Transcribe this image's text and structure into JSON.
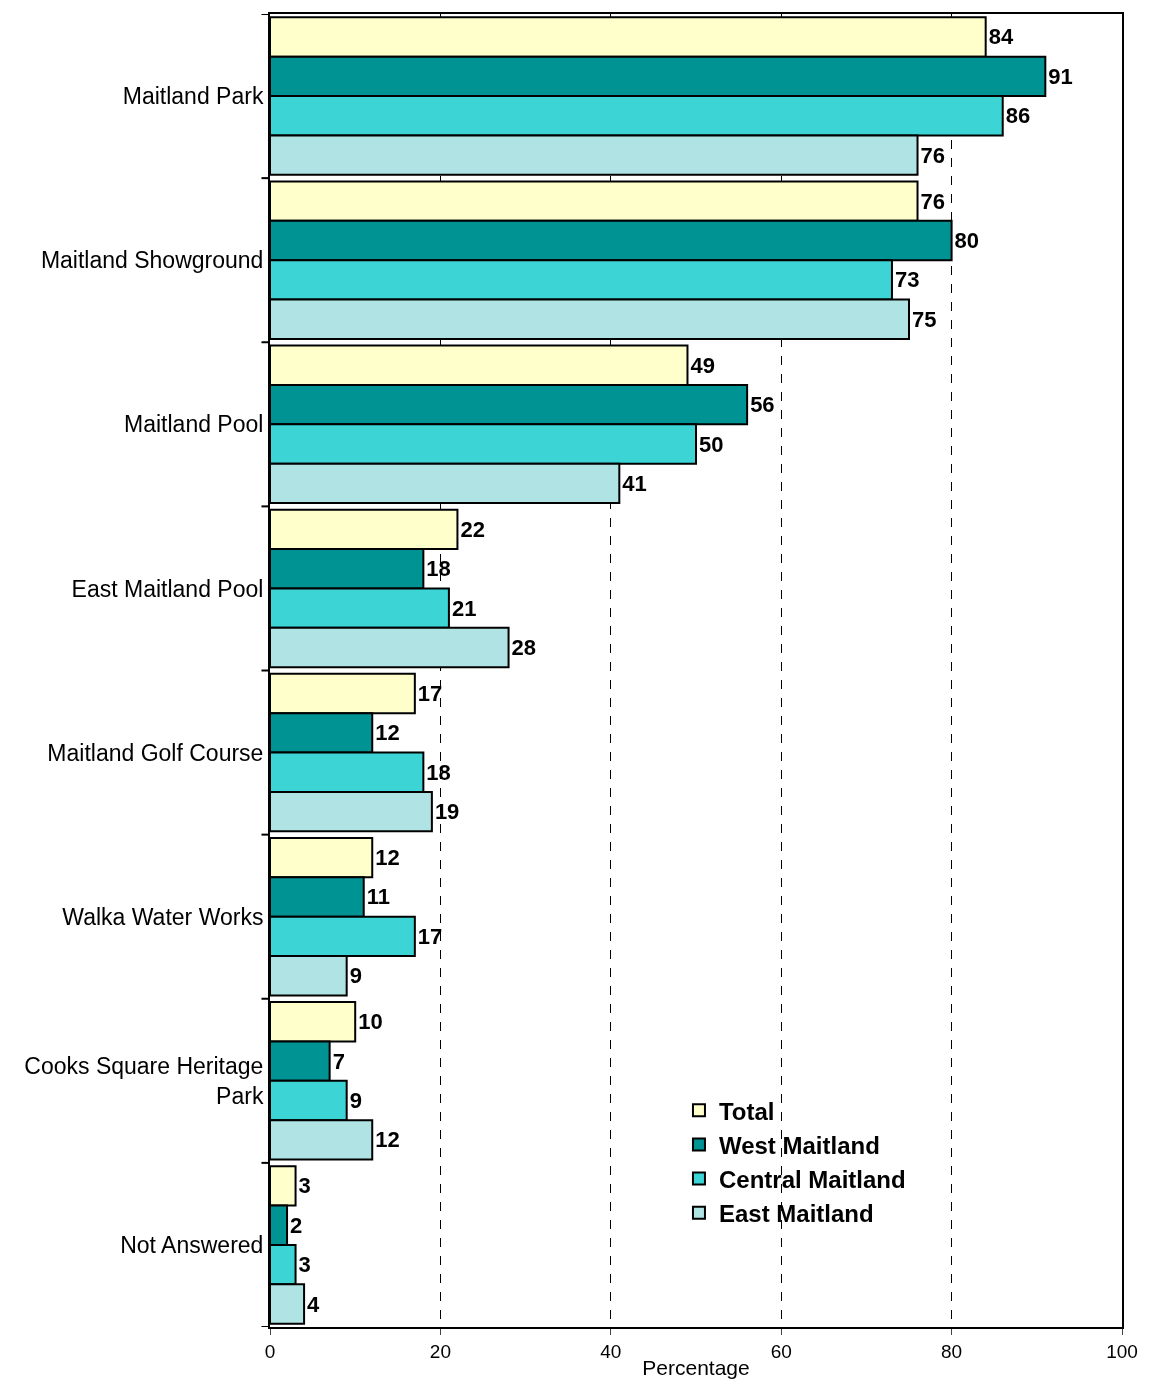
{
  "chart_data": {
    "type": "bar",
    "orientation": "horizontal",
    "xlabel": "Percentage",
    "categories": [
      "Maitland Park",
      "Maitland Showground",
      "Maitland Pool",
      "East Maitland Pool",
      "Maitland Golf Course",
      "Walka Water Works",
      "Cooks Square Heritage Park",
      "Not Answered"
    ],
    "series": [
      {
        "name": "Total",
        "color": "#ffffcc",
        "values": [
          84,
          76,
          49,
          22,
          17,
          12,
          10,
          3
        ]
      },
      {
        "name": "West Maitland",
        "color": "#009393",
        "values": [
          91,
          80,
          56,
          18,
          12,
          11,
          7,
          2
        ]
      },
      {
        "name": "Central Maitland",
        "color": "#3cd4d4",
        "values": [
          86,
          73,
          50,
          21,
          18,
          17,
          9,
          3
        ]
      },
      {
        "name": "East Maitland",
        "color": "#b0e4e4",
        "values": [
          76,
          75,
          41,
          28,
          19,
          9,
          12,
          4
        ]
      }
    ],
    "xlim": [
      0,
      100
    ],
    "xticks": [
      0,
      20,
      40,
      60,
      80,
      100
    ],
    "grid": "x",
    "legend": "bottom right",
    "data_labels": true
  }
}
